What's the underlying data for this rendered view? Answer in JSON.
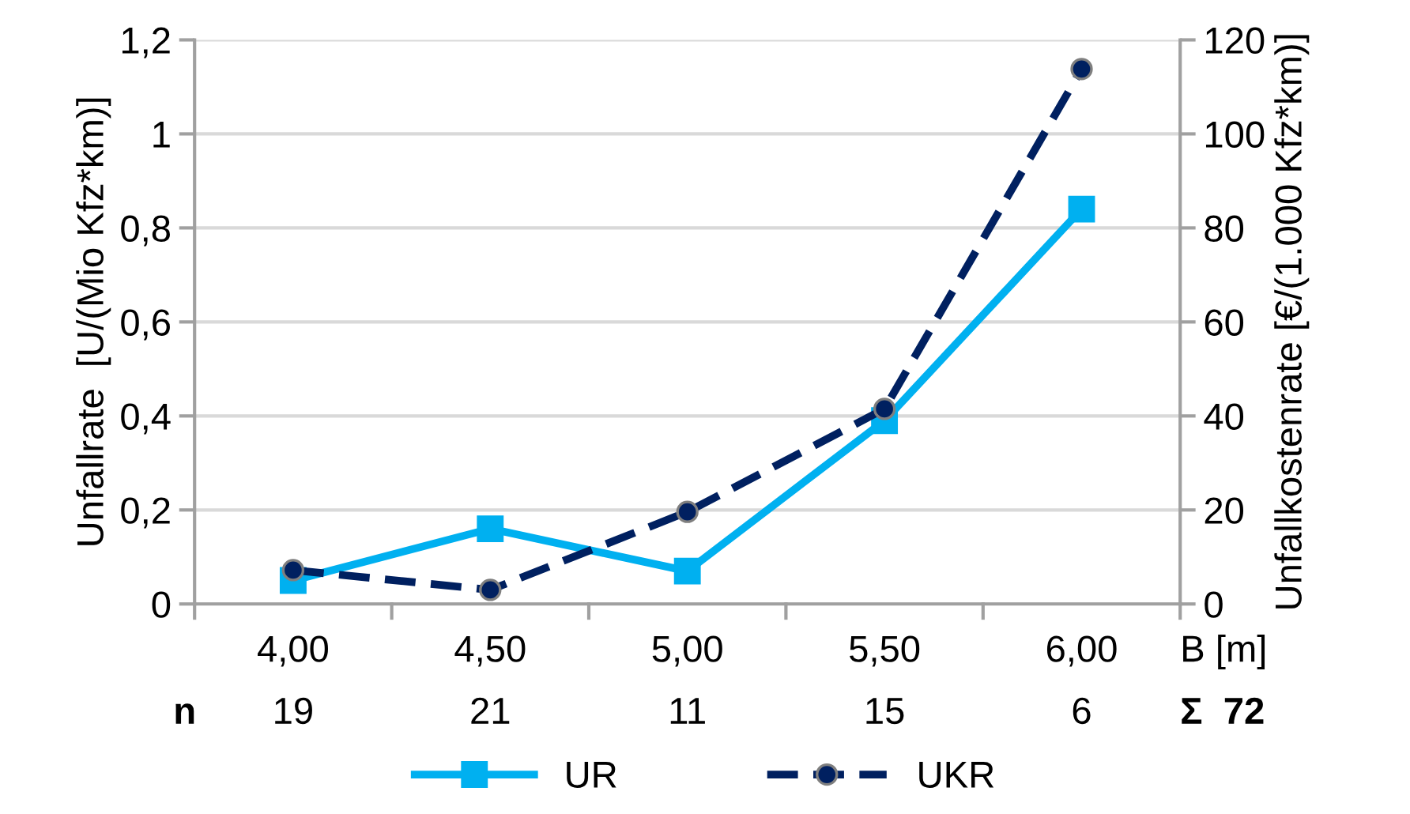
{
  "chart_data": {
    "type": "line",
    "xlabel": "B [m]",
    "ylabel": "Unfallrate  [U/(Mio Kfz*km)]",
    "y2label": "Unfallkostenrate [€/(1.000 Kfz*km)]",
    "categories": [
      "4,00",
      "4,50",
      "5,00",
      "5,50",
      "6,00"
    ],
    "series": [
      {
        "name": "UR",
        "color": "#00b0f0",
        "marker": "square",
        "line_style": "solid",
        "values": [
          0.05,
          0.16,
          0.07,
          0.39,
          0.84
        ]
      },
      {
        "name": "UKR",
        "color": "#002060",
        "marker": "circle",
        "line_style": "dashed",
        "axis": "y2",
        "values": [
          7.2,
          3.0,
          19.6,
          41.5,
          113.8
        ]
      }
    ],
    "ylim": [
      0,
      1.2
    ],
    "yticks": [
      0,
      {
        "value": 0.2,
        "label": "0,2"
      },
      {
        "value": 0.4,
        "label": "0,4"
      },
      {
        "value": 0.6,
        "label": "0,6"
      },
      {
        "value": 0.8,
        "label": "0,8"
      },
      1,
      {
        "value": 1.2,
        "label": "1,2"
      }
    ],
    "y2lim": [
      0,
      120
    ],
    "y2ticks": [
      0,
      20,
      40,
      60,
      80,
      100,
      120
    ],
    "grid": "y",
    "legend": "bottom",
    "annotations": [
      "n",
      "19",
      "21",
      "11",
      "15",
      "6",
      "Σ  72"
    ]
  }
}
